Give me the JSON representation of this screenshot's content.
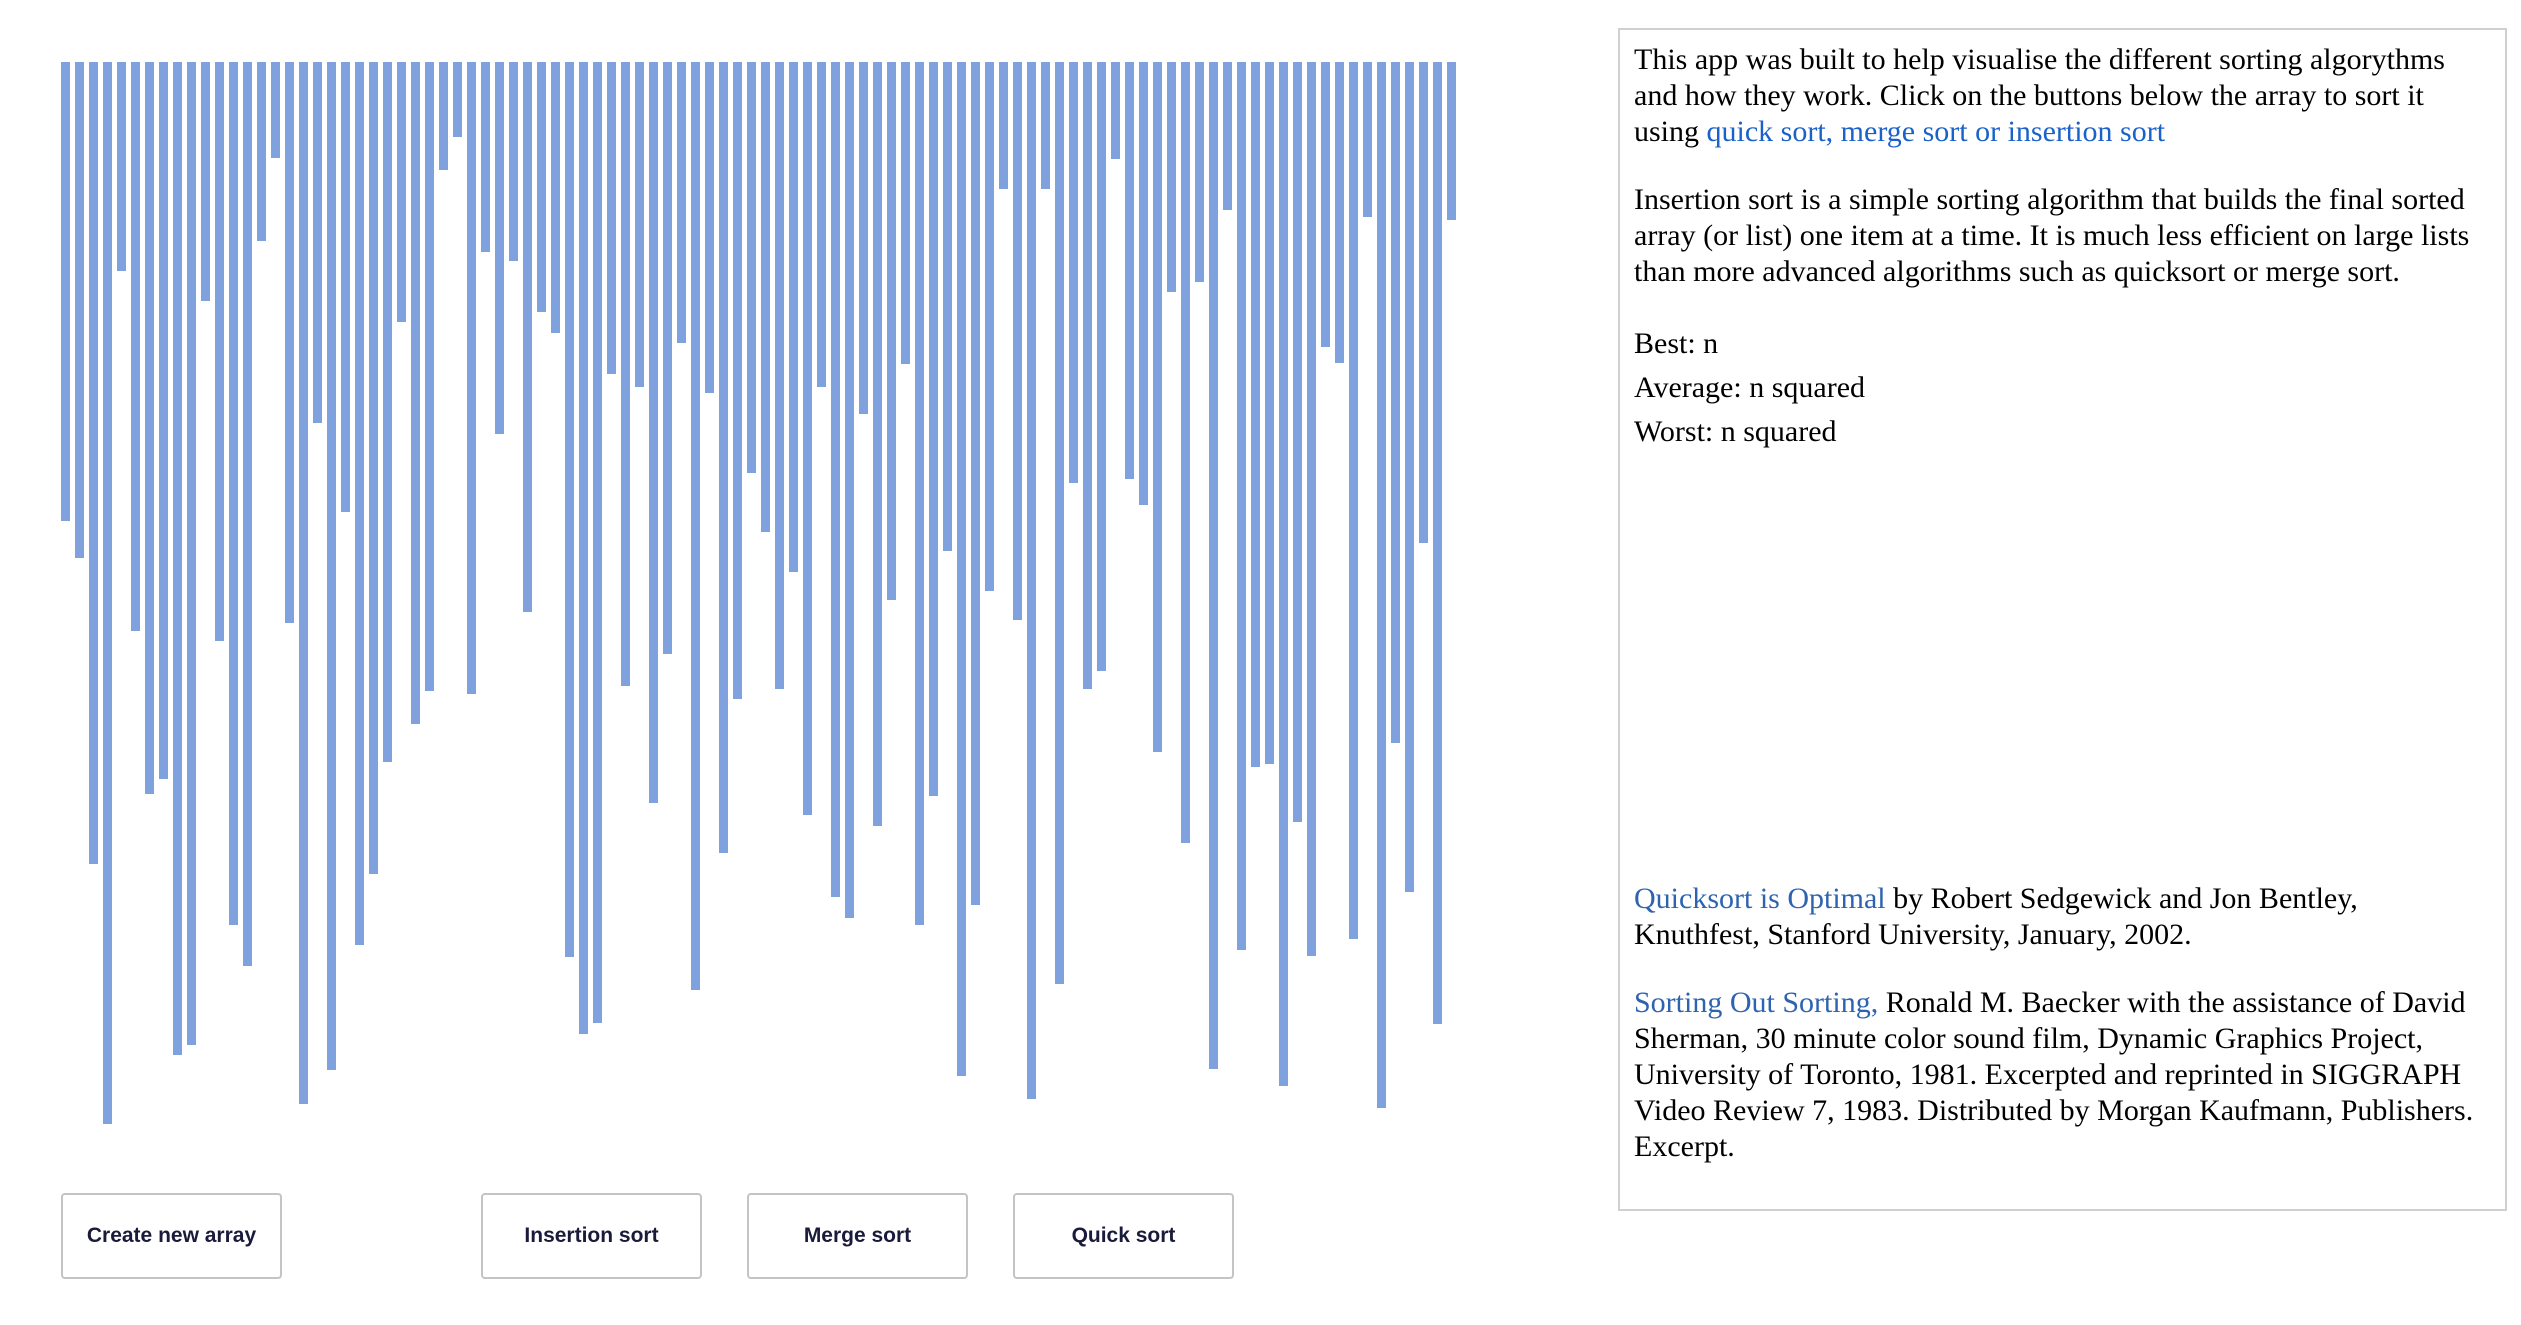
{
  "array": {
    "bar_color": "#7fa2df",
    "heights_fraction": [
      0.432,
      0.467,
      0.755,
      1.0,
      0.197,
      0.536,
      0.689,
      0.675,
      0.935,
      0.926,
      0.225,
      0.545,
      0.813,
      0.851,
      0.169,
      0.09,
      0.528,
      0.981,
      0.34,
      0.949,
      0.424,
      0.831,
      0.765,
      0.659,
      0.245,
      0.623,
      0.592,
      0.102,
      0.071,
      0.595,
      0.179,
      0.35,
      0.187,
      0.518,
      0.235,
      0.255,
      0.843,
      0.915,
      0.905,
      0.294,
      0.588,
      0.306,
      0.698,
      0.557,
      0.265,
      0.874,
      0.312,
      0.745,
      0.6,
      0.387,
      0.443,
      0.59,
      0.48,
      0.709,
      0.306,
      0.786,
      0.806,
      0.331,
      0.719,
      0.507,
      0.284,
      0.813,
      0.691,
      0.46,
      0.955,
      0.794,
      0.498,
      0.12,
      0.525,
      0.976,
      0.12,
      0.868,
      0.396,
      0.59,
      0.573,
      0.091,
      0.393,
      0.417,
      0.65,
      0.217,
      0.735,
      0.207,
      0.948,
      0.139,
      0.836,
      0.664,
      0.661,
      0.964,
      0.716,
      0.842,
      0.268,
      0.283,
      0.826,
      0.146,
      0.985,
      0.641,
      0.782,
      0.453,
      0.906,
      0.149
    ]
  },
  "buttons": {
    "create": "Create new array",
    "insertion": "Insertion sort",
    "merge": "Merge sort",
    "quick": "Quick sort"
  },
  "info": {
    "intro_text": "This app was built to help visualise the different sorting algorythms and how they work. Click on the buttons below the array to sort it using ",
    "intro_link": "quick sort, merge sort or insertion sort",
    "description": "Insertion sort is a simple sorting algorithm that builds the final sorted array (or list) one item at a time. It is much less efficient on large lists than more advanced algorithms such as quicksort or merge sort.",
    "best": "Best: n",
    "average": "Average: n squared",
    "worst": "Worst: n squared",
    "ref1_link": "Quicksort is Optimal",
    "ref1_text": " by Robert Sedgewick and Jon Bentley, Knuthfest, Stanford University, January, 2002.",
    "ref2_link": "Sorting Out Sorting,",
    "ref2_text": " Ronald M. Baecker with the assistance of David Sherman, 30 minute color sound film, Dynamic Graphics Project, University of Toronto, 1981. Excerpted and reprinted in SIGGRAPH Video Review 7, 1983. Distributed by Morgan Kaufmann, Publishers. Excerpt."
  },
  "colors": {
    "link": "#1a62c9",
    "button_text": "#1a1a3a",
    "panel_border": "#d0d0d0"
  }
}
